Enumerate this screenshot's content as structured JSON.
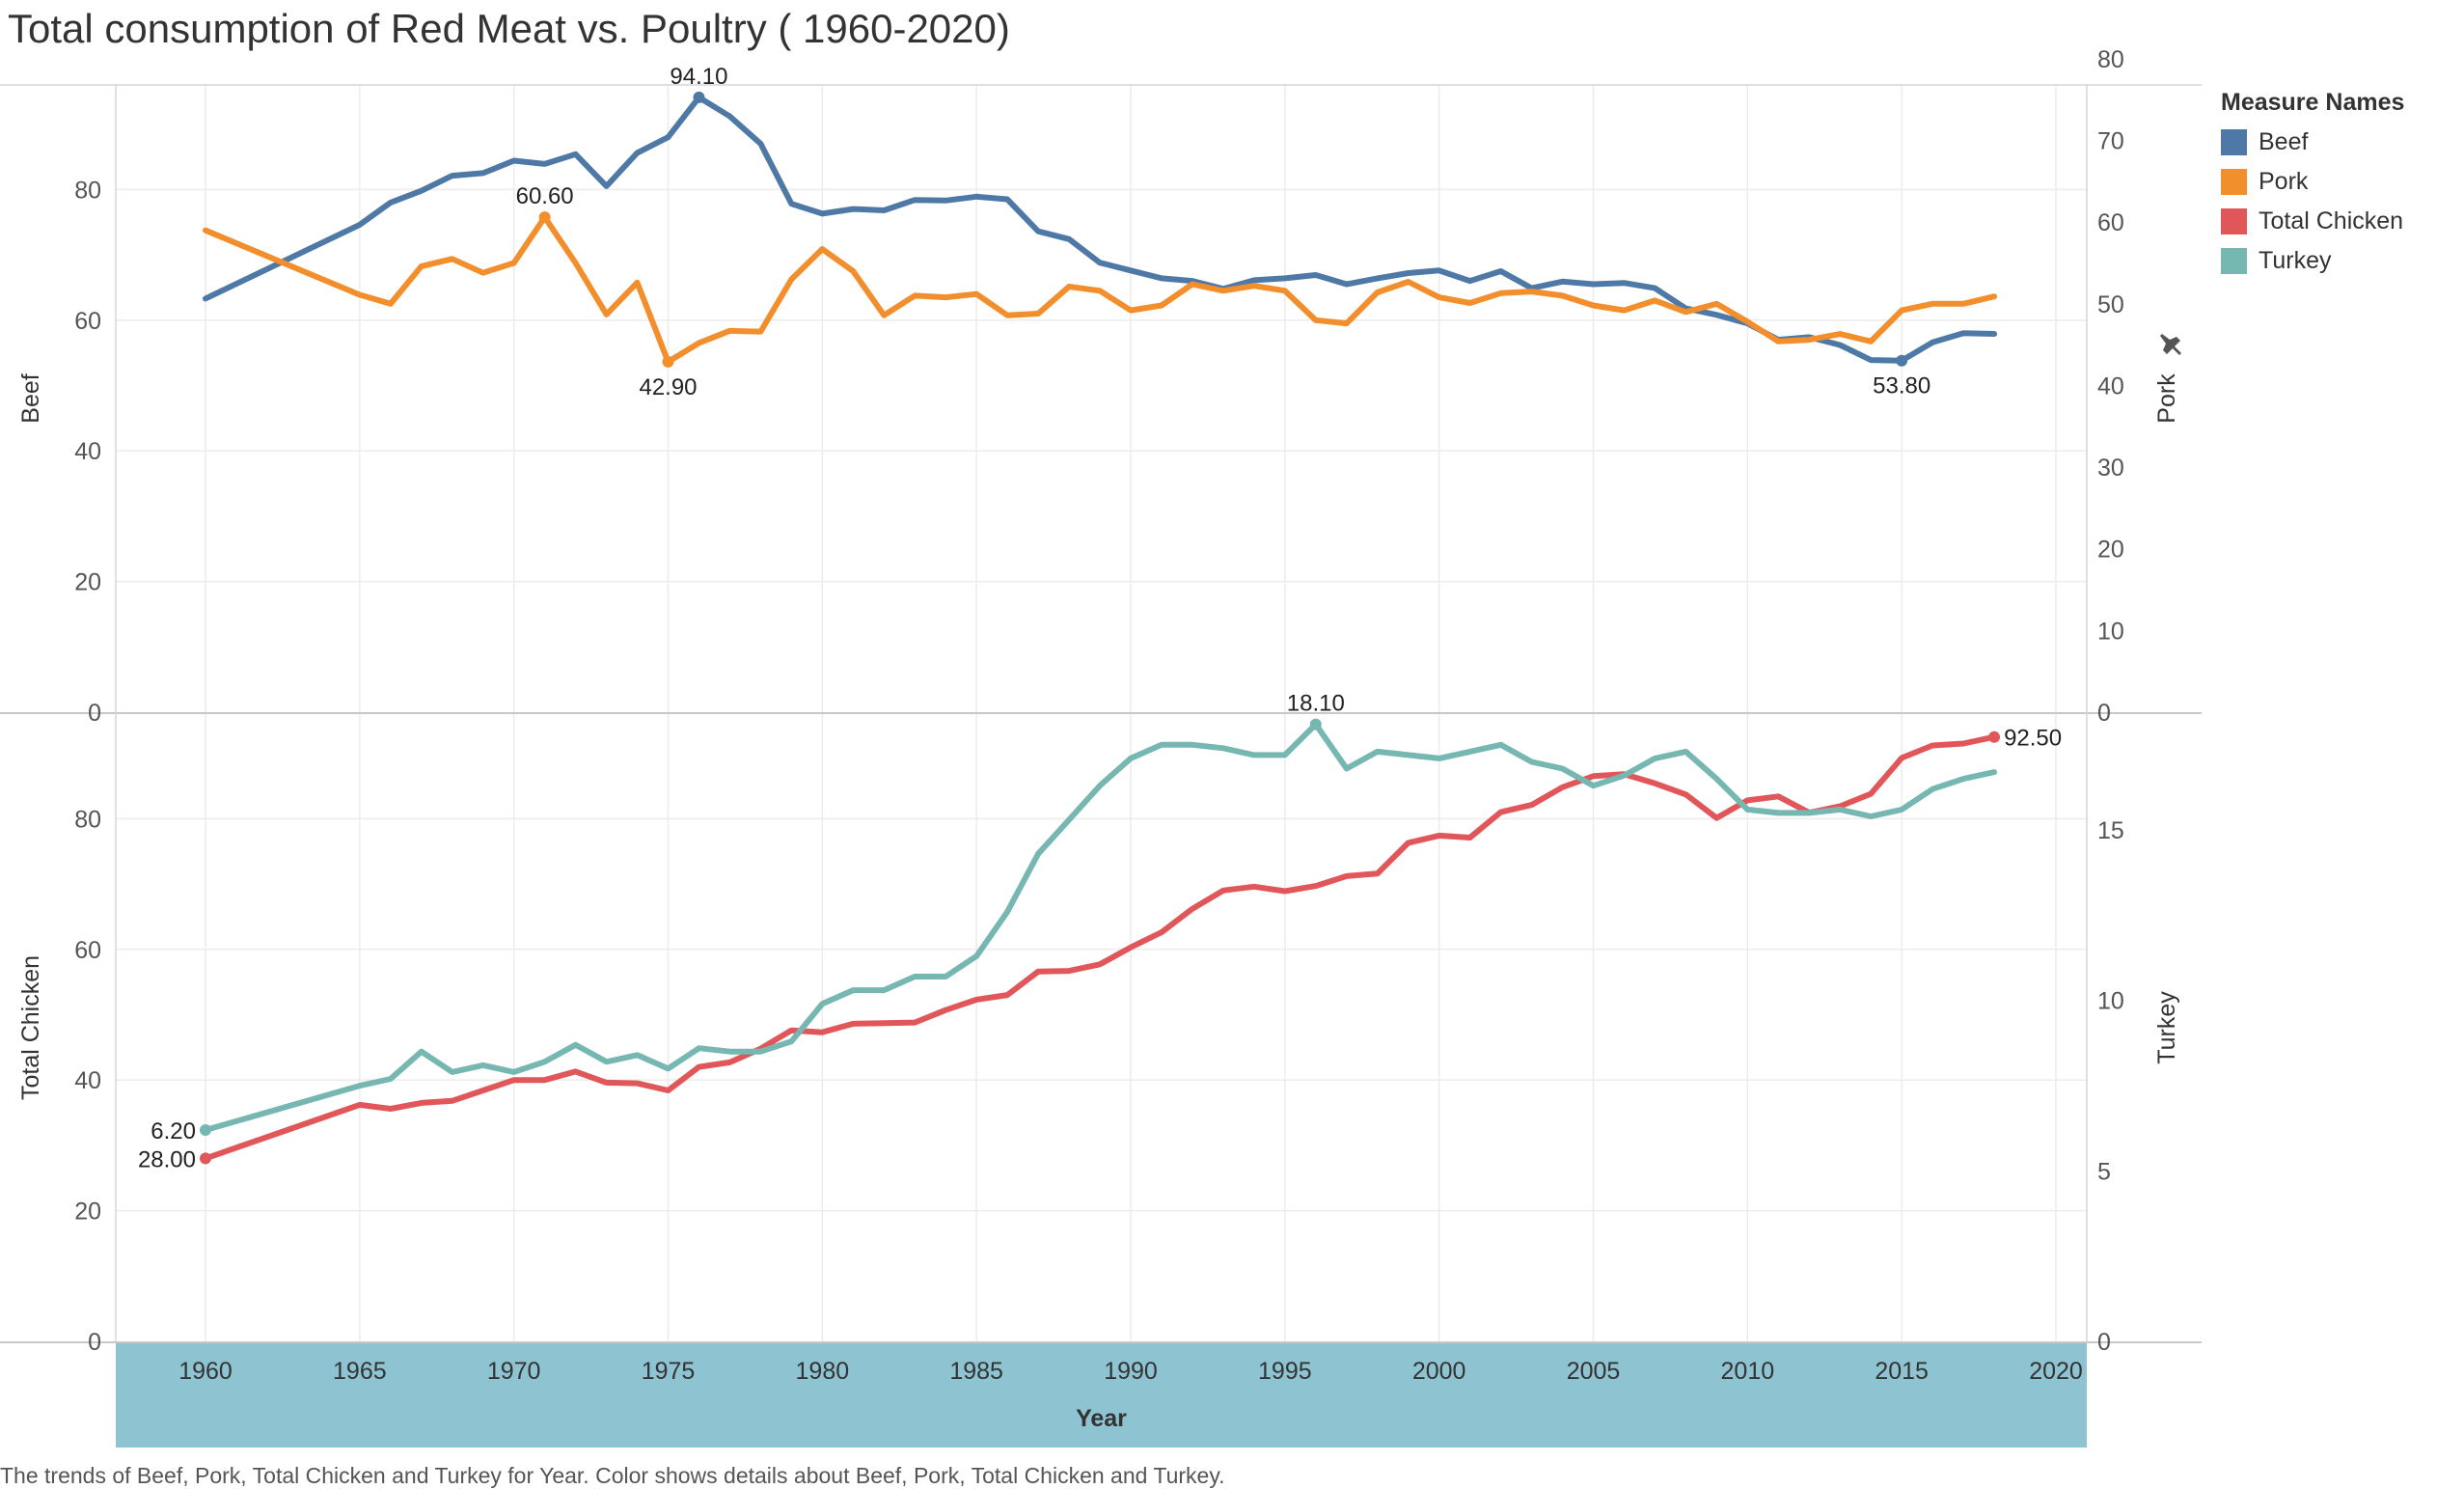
{
  "title": "Total consumption of Red Meat vs. Poultry ( 1960-2020)",
  "caption": "The trends of Beef, Pork, Total Chicken and Turkey for Year.  Color shows details about Beef, Pork, Total Chicken and Turkey.",
  "legend": {
    "title": "Measure Names",
    "items": [
      {
        "label": "Beef",
        "color": "#4e79a7"
      },
      {
        "label": "Pork",
        "color": "#f28e2b"
      },
      {
        "label": "Total Chicken",
        "color": "#e15759"
      },
      {
        "label": "Turkey",
        "color": "#76b7b2"
      }
    ]
  },
  "pin_icon": "pin-icon",
  "chart_data": {
    "type": "line",
    "xlabel": "Year",
    "x_ticks": [
      "1960",
      "1965",
      "1970",
      "1975",
      "1980",
      "1985",
      "1990",
      "1995",
      "2000",
      "2005",
      "2010",
      "2015",
      "2020"
    ],
    "xlim": [
      1960,
      2020
    ],
    "panes": [
      {
        "left_axis": {
          "label": "Beef",
          "ylim": [
            0,
            96
          ],
          "ticks": [
            "0",
            "20",
            "40",
            "60",
            "80"
          ]
        },
        "right_axis": {
          "label": "Pork",
          "ylim": [
            0,
            76.8
          ],
          "ticks": [
            "0",
            "10",
            "20",
            "30",
            "40",
            "50",
            "60",
            "70",
            "80"
          ]
        },
        "series": [
          {
            "name": "Beef",
            "color": "#4e79a7",
            "axis": "left",
            "years": [
              1960,
              1965,
              1966,
              1967,
              1968,
              1969,
              1970,
              1971,
              1972,
              1973,
              1974,
              1975,
              1976,
              1977,
              1978,
              1979,
              1980,
              1981,
              1982,
              1983,
              1984,
              1985,
              1986,
              1987,
              1988,
              1989,
              1990,
              1991,
              1992,
              1993,
              1994,
              1995,
              1996,
              1997,
              1998,
              1999,
              2000,
              2001,
              2002,
              2003,
              2004,
              2005,
              2006,
              2007,
              2008,
              2009,
              2010,
              2011,
              2012,
              2013,
              2014,
              2015,
              2016,
              2017,
              2018
            ],
            "values": [
              63.3,
              74.6,
              78.0,
              79.8,
              82.1,
              82.5,
              84.4,
              83.9,
              85.4,
              80.5,
              85.6,
              88.0,
              94.1,
              91.2,
              87.0,
              77.8,
              76.3,
              77.0,
              76.8,
              78.4,
              78.3,
              78.9,
              78.5,
              73.6,
              72.4,
              68.8,
              67.6,
              66.4,
              66.0,
              64.8,
              66.1,
              66.4,
              66.9,
              65.5,
              66.4,
              67.2,
              67.6,
              66.0,
              67.5,
              64.9,
              65.9,
              65.5,
              65.7,
              64.9,
              61.8,
              60.8,
              59.5,
              57.0,
              57.4,
              56.2,
              53.9,
              53.8,
              56.6,
              58.0,
              57.9
            ],
            "labels": [
              {
                "year": 1976,
                "text": "94.10",
                "pos": "above"
              },
              {
                "year": 2015,
                "text": "53.80",
                "pos": "below"
              }
            ]
          },
          {
            "name": "Pork",
            "color": "#f28e2b",
            "axis": "right",
            "years": [
              1960,
              1965,
              1966,
              1967,
              1968,
              1969,
              1970,
              1971,
              1972,
              1973,
              1974,
              1975,
              1976,
              1977,
              1978,
              1979,
              1980,
              1981,
              1982,
              1983,
              1984,
              1985,
              1986,
              1987,
              1988,
              1989,
              1990,
              1991,
              1992,
              1993,
              1994,
              1995,
              1996,
              1997,
              1998,
              1999,
              2000,
              2001,
              2002,
              2003,
              2004,
              2005,
              2006,
              2007,
              2008,
              2009,
              2010,
              2011,
              2012,
              2013,
              2014,
              2015,
              2016,
              2017,
              2018
            ],
            "values": [
              59.0,
              51.1,
              50.0,
              54.6,
              55.5,
              53.8,
              55.0,
              60.6,
              55.0,
              48.7,
              52.6,
              42.9,
              45.2,
              46.7,
              46.6,
              53.0,
              56.7,
              54.0,
              48.6,
              51.0,
              50.8,
              51.2,
              48.6,
              48.8,
              52.1,
              51.6,
              49.2,
              49.8,
              52.4,
              51.6,
              52.2,
              51.6,
              48.0,
              47.6,
              51.4,
              52.7,
              50.8,
              50.1,
              51.3,
              51.5,
              51.0,
              49.8,
              49.2,
              50.4,
              49.0,
              50.0,
              47.8,
              45.4,
              45.6,
              46.3,
              45.4,
              49.2,
              50.0,
              50.0,
              50.9
            ],
            "labels": [
              {
                "year": 1971,
                "text": "60.60",
                "pos": "above"
              },
              {
                "year": 1975,
                "text": "42.90",
                "pos": "below"
              }
            ]
          }
        ]
      },
      {
        "left_axis": {
          "label": "Total Chicken",
          "ylim": [
            0,
            96
          ],
          "ticks": [
            "0",
            "20",
            "40",
            "60",
            "80"
          ]
        },
        "right_axis": {
          "label": "Turkey",
          "ylim": [
            0,
            18.4
          ],
          "ticks": [
            "0",
            "5",
            "10",
            "15"
          ]
        },
        "series": [
          {
            "name": "Total Chicken",
            "color": "#e15759",
            "axis": "left",
            "years": [
              1960,
              1965,
              1966,
              1967,
              1968,
              1969,
              1970,
              1971,
              1972,
              1973,
              1974,
              1975,
              1976,
              1977,
              1978,
              1979,
              1980,
              1981,
              1982,
              1983,
              1984,
              1985,
              1986,
              1987,
              1988,
              1989,
              1990,
              1991,
              1992,
              1993,
              1994,
              1995,
              1996,
              1997,
              1998,
              1999,
              2000,
              2001,
              2002,
              2003,
              2004,
              2005,
              2006,
              2007,
              2008,
              2009,
              2010,
              2011,
              2012,
              2013,
              2014,
              2015,
              2016,
              2017,
              2018
            ],
            "values": [
              28.0,
              36.2,
              35.6,
              36.5,
              36.8,
              38.4,
              40.0,
              40.0,
              41.3,
              39.6,
              39.5,
              38.4,
              42.0,
              42.7,
              44.8,
              47.6,
              47.3,
              48.6,
              48.7,
              48.8,
              50.7,
              52.3,
              53.0,
              56.6,
              56.7,
              57.7,
              60.3,
              62.6,
              66.2,
              69.0,
              69.6,
              68.9,
              69.7,
              71.2,
              71.6,
              76.3,
              77.4,
              77.1,
              81.0,
              82.1,
              84.8,
              86.5,
              86.8,
              85.4,
              83.7,
              80.1,
              82.8,
              83.4,
              80.9,
              81.9,
              83.8,
              89.3,
              91.2,
              91.5,
              92.5
            ],
            "labels": [
              {
                "year": 1960,
                "text": "28.00",
                "pos": "left"
              },
              {
                "year": 2018,
                "text": "92.50",
                "pos": "right"
              }
            ]
          },
          {
            "name": "Turkey",
            "color": "#76b7b2",
            "axis": "left-scaled",
            "years": [
              1960,
              1965,
              1966,
              1967,
              1968,
              1969,
              1970,
              1971,
              1972,
              1973,
              1974,
              1975,
              1976,
              1977,
              1978,
              1979,
              1980,
              1981,
              1982,
              1983,
              1984,
              1985,
              1986,
              1987,
              1988,
              1989,
              1990,
              1991,
              1992,
              1993,
              1994,
              1995,
              1996,
              1997,
              1998,
              1999,
              2000,
              2001,
              2002,
              2003,
              2004,
              2005,
              2006,
              2007,
              2008,
              2009,
              2010,
              2011,
              2012,
              2013,
              2014,
              2015,
              2016,
              2017,
              2018
            ],
            "values": [
              6.2,
              7.5,
              7.7,
              8.5,
              7.9,
              8.1,
              7.9,
              8.2,
              8.7,
              8.2,
              8.4,
              8.0,
              8.6,
              8.5,
              8.5,
              8.8,
              9.9,
              10.3,
              10.3,
              10.7,
              10.7,
              11.3,
              12.6,
              14.3,
              15.3,
              16.3,
              17.1,
              17.5,
              17.5,
              17.4,
              17.2,
              17.2,
              18.1,
              16.8,
              17.3,
              17.2,
              17.1,
              17.3,
              17.5,
              17.0,
              16.8,
              16.3,
              16.6,
              17.1,
              17.3,
              16.5,
              15.6,
              15.5,
              15.5,
              15.6,
              15.4,
              15.6,
              16.2,
              16.5,
              16.7
            ],
            "labels": [
              {
                "year": 1960,
                "text": "6.20",
                "pos": "left"
              },
              {
                "year": 1996,
                "text": "18.10",
                "pos": "above"
              }
            ]
          }
        ]
      }
    ]
  }
}
